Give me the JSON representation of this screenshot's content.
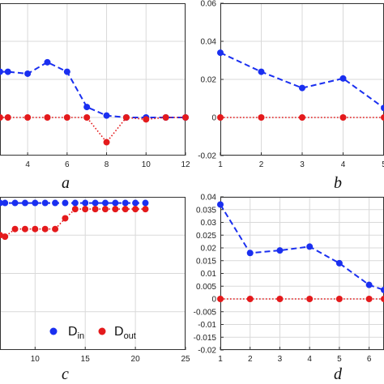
{
  "colors": {
    "d_in": "#1a2ff0",
    "d_out": "#e41a1c",
    "grid": "#d9d9d9",
    "axis": "#333333"
  },
  "legend": {
    "d_in": "D",
    "d_in_sub": "in",
    "d_out": "D",
    "d_out_sub": "out"
  },
  "chart_data": [
    {
      "panel": "a",
      "type": "line",
      "xticks": [
        "4",
        "6",
        "8",
        "10",
        "12"
      ],
      "xlim": [
        2.6,
        12
      ],
      "ylim": [
        -0.02,
        0.06
      ],
      "grid": true,
      "series": [
        {
          "name": "in",
          "style": "dashed",
          "x": [
            2.6,
            3,
            4,
            5,
            6,
            7,
            8,
            9,
            10,
            11,
            12
          ],
          "values": [
            0.024,
            0.024,
            0.023,
            0.029,
            0.024,
            0.0055,
            0.001,
            0.0,
            0.0,
            0.0,
            0.0
          ]
        },
        {
          "name": "out",
          "style": "dotted",
          "x": [
            2.6,
            3,
            4,
            5,
            6,
            7,
            8,
            9,
            10,
            11,
            12
          ],
          "values": [
            0.0,
            0.0,
            0.0,
            0.0,
            0.0,
            0.0,
            -0.013,
            0.0,
            -0.001,
            0.0,
            0.0
          ]
        }
      ]
    },
    {
      "panel": "b",
      "type": "line",
      "xticks": [
        "1",
        "2",
        "3",
        "4",
        "5"
      ],
      "xlim": [
        1,
        5
      ],
      "yticks": [
        "0.06",
        "0.04",
        "0.02",
        "0",
        "-0.02"
      ],
      "ylim": [
        -0.02,
        0.06
      ],
      "grid": true,
      "series": [
        {
          "name": "in",
          "style": "dashed",
          "x": [
            1,
            2,
            3,
            4,
            5
          ],
          "values": [
            0.034,
            0.024,
            0.0155,
            0.0205,
            0.005
          ]
        },
        {
          "name": "out",
          "style": "dotted",
          "x": [
            1,
            2,
            3,
            4,
            5
          ],
          "values": [
            0.0,
            0.0,
            0.0,
            0.0,
            0.0
          ]
        }
      ]
    },
    {
      "panel": "c",
      "type": "line",
      "xticks": [
        "10",
        "15",
        "20",
        "25"
      ],
      "xlim": [
        6.5,
        25
      ],
      "ylim": [
        0,
        1
      ],
      "grid": true,
      "legend": "bottom",
      "series": [
        {
          "name": "in",
          "style": "dashed",
          "x": [
            6.5,
            7,
            8,
            9,
            10,
            11,
            12,
            13,
            14,
            15,
            16,
            17,
            18,
            19,
            20,
            21
          ],
          "values": [
            0.96,
            0.96,
            0.96,
            0.96,
            0.96,
            0.96,
            0.96,
            0.96,
            0.96,
            0.96,
            0.96,
            0.96,
            0.96,
            0.96,
            0.96,
            0.96
          ]
        },
        {
          "name": "out",
          "style": "dotted",
          "x": [
            6.5,
            7,
            8,
            9,
            10,
            11,
            12,
            13,
            14,
            15,
            16,
            17,
            18,
            19,
            20,
            21
          ],
          "values": [
            0.75,
            0.74,
            0.79,
            0.79,
            0.79,
            0.79,
            0.79,
            0.86,
            0.92,
            0.92,
            0.92,
            0.92,
            0.92,
            0.92,
            0.92,
            0.92
          ]
        }
      ]
    },
    {
      "panel": "d",
      "type": "line",
      "xticks": [
        "1",
        "2",
        "3",
        "4",
        "5",
        "6"
      ],
      "xlim": [
        1,
        6.5
      ],
      "yticks": [
        "0.04",
        "0.035",
        "0.03",
        "0.025",
        "0.02",
        "0.015",
        "0.01",
        "0.005",
        "0",
        "-0.005",
        "-0.01",
        "-0.015",
        "-0.02"
      ],
      "ylim": [
        -0.02,
        0.04
      ],
      "grid": true,
      "series": [
        {
          "name": "in",
          "style": "dashed",
          "x": [
            1,
            2,
            3,
            4,
            5,
            6,
            6.5
          ],
          "values": [
            0.037,
            0.018,
            0.019,
            0.0205,
            0.014,
            0.0055,
            0.0035
          ]
        },
        {
          "name": "out",
          "style": "dotted",
          "x": [
            1,
            2,
            3,
            4,
            5,
            6,
            6.5
          ],
          "values": [
            0.0,
            0.0,
            0.0,
            0.0,
            0.0,
            0.0,
            0.0
          ]
        }
      ]
    }
  ]
}
